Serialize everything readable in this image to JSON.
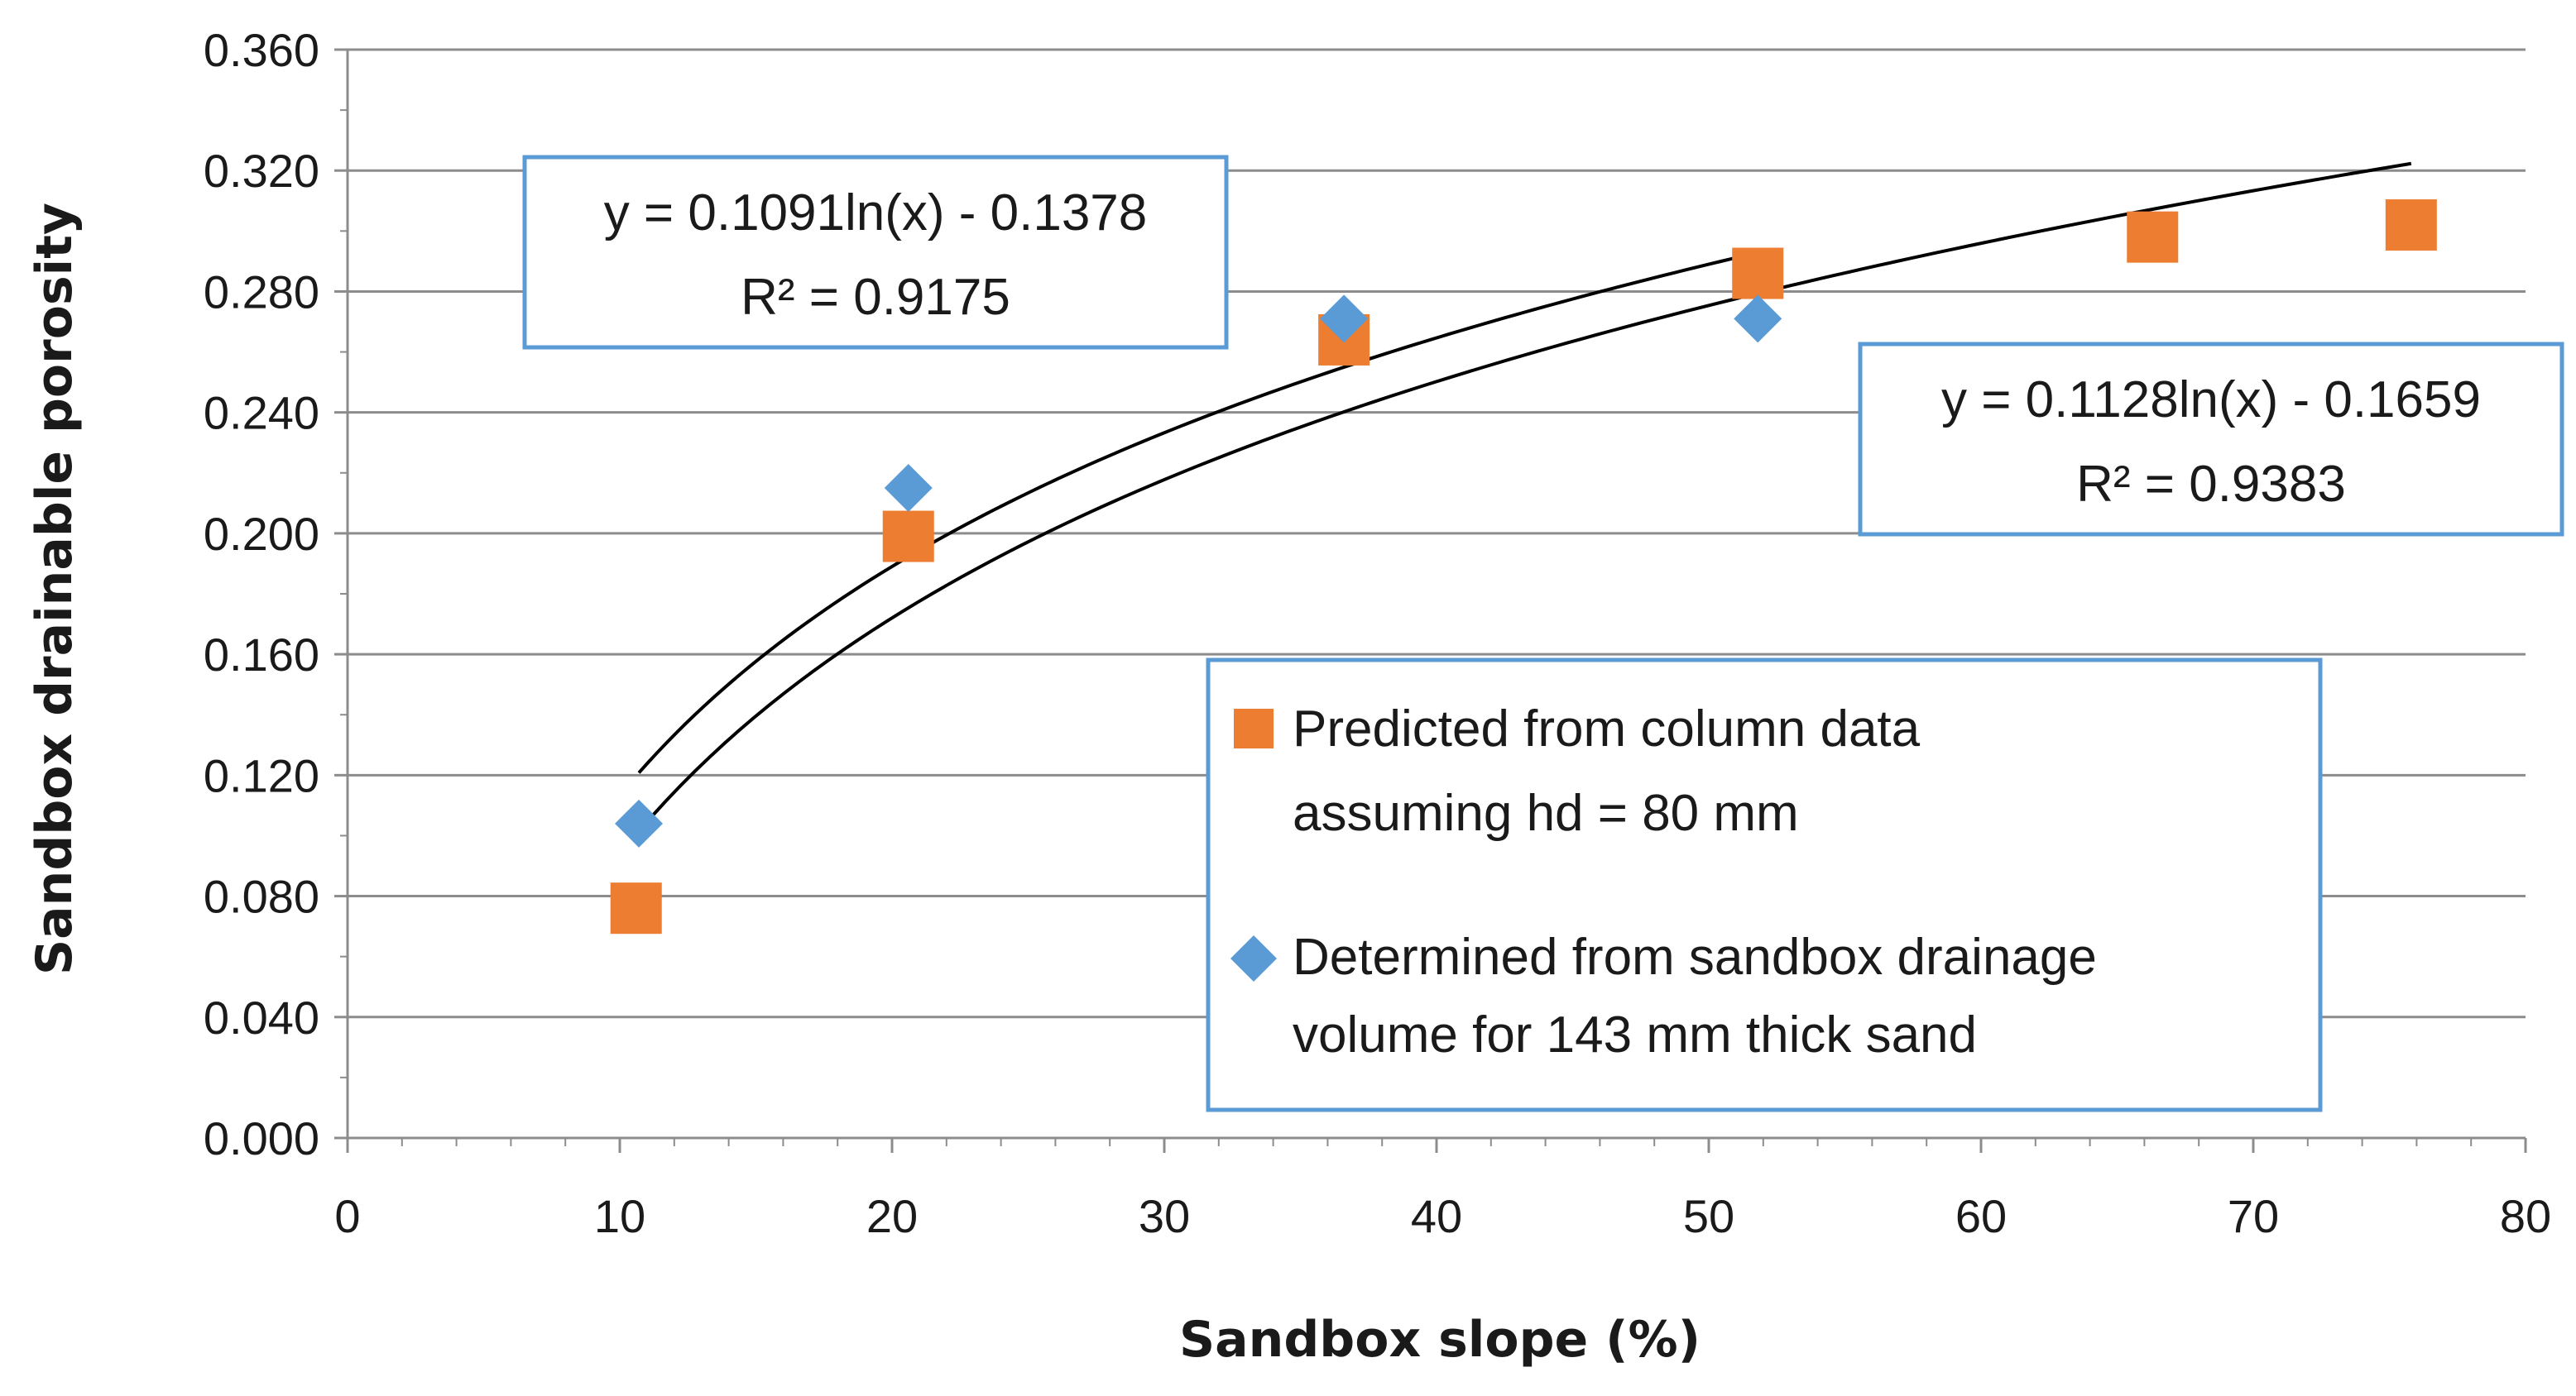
{
  "chart_data": {
    "type": "scatter",
    "xlabel": "Sandbox slope (%)",
    "ylabel": "Sandbox drainable porosity",
    "xlim": [
      0,
      80
    ],
    "ylim": [
      0,
      0.36
    ],
    "x_ticks": [
      "0",
      "10",
      "20",
      "30",
      "40",
      "50",
      "60",
      "70",
      "80"
    ],
    "y_ticks": [
      "0.000",
      "0.040",
      "0.080",
      "0.120",
      "0.160",
      "0.200",
      "0.240",
      "0.280",
      "0.320",
      "0.360"
    ],
    "grid": "horizontal",
    "series": [
      {
        "name": "Predicted from column data assuming hd = 80 mm",
        "legend_lines": [
          "Predicted from column data",
          "assuming hd = 80 mm"
        ],
        "marker": "square",
        "color": "#ED7D31",
        "x": [
          10.6,
          20.6,
          36.6,
          51.8,
          66.3,
          75.8
        ],
        "y": [
          0.076,
          0.199,
          0.264,
          0.286,
          0.298,
          0.302
        ]
      },
      {
        "name": "Determined from sandbox drainage volume for 143 mm thick sand",
        "legend_lines": [
          "Determined from sandbox drainage",
          "volume for 143 mm thick sand"
        ],
        "marker": "diamond",
        "color": "#5B9BD5",
        "x": [
          10.7,
          20.6,
          36.6,
          51.8
        ],
        "y": [
          0.104,
          0.215,
          0.271,
          0.271
        ]
      }
    ],
    "trendlines": [
      {
        "type": "logarithmic",
        "a": 0.1091,
        "b": -0.1378,
        "x_range": [
          10.7,
          51.8
        ],
        "equation": "y = 0.1091ln(x) - 0.1378",
        "r2_label": "R² = 0.9175",
        "color": "#000000"
      },
      {
        "type": "logarithmic",
        "a": 0.1128,
        "b": -0.1659,
        "x_range": [
          10.6,
          75.8
        ],
        "equation": "y = 0.1128ln(x) - 0.1659",
        "r2_label": "R² = 0.9383",
        "color": "#000000"
      }
    ],
    "legend_position": "lower-right",
    "box_border_color": "#5B9BD5"
  }
}
